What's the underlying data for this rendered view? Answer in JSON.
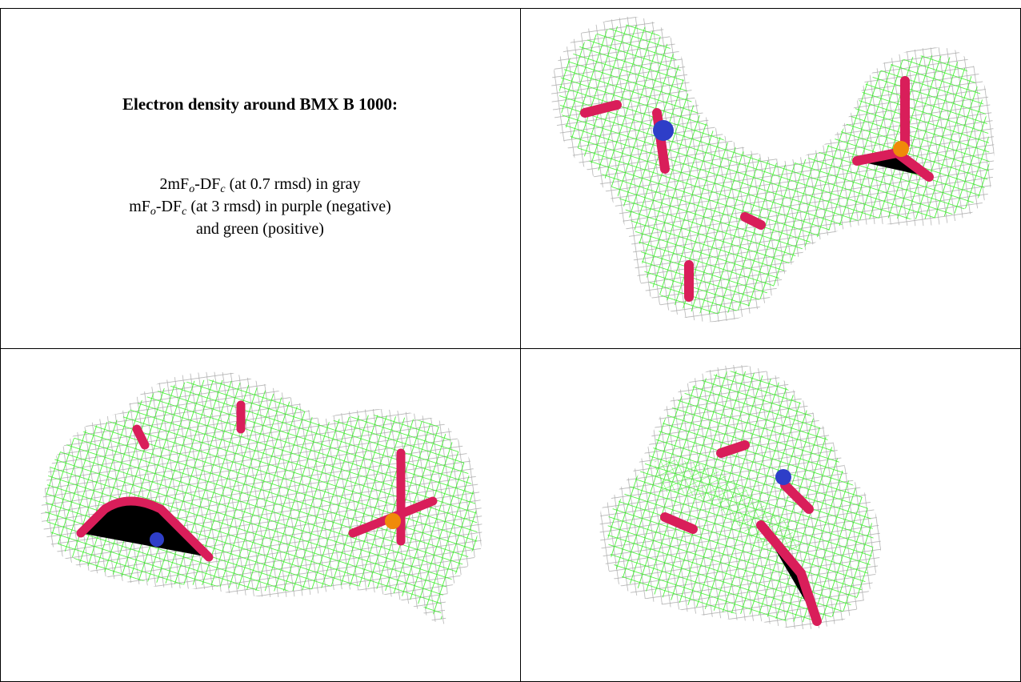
{
  "caption": {
    "title": "Electron density around BMX B 1000:",
    "line1": [
      "2mF",
      "o",
      "-DF",
      "c",
      " (at 0.7 rmsd) in gray"
    ],
    "line2": [
      "mF",
      "o",
      "-DF",
      "c",
      " (at 3 rmsd) in purple (negative)"
    ],
    "line3": "and green (positive)"
  }
}
